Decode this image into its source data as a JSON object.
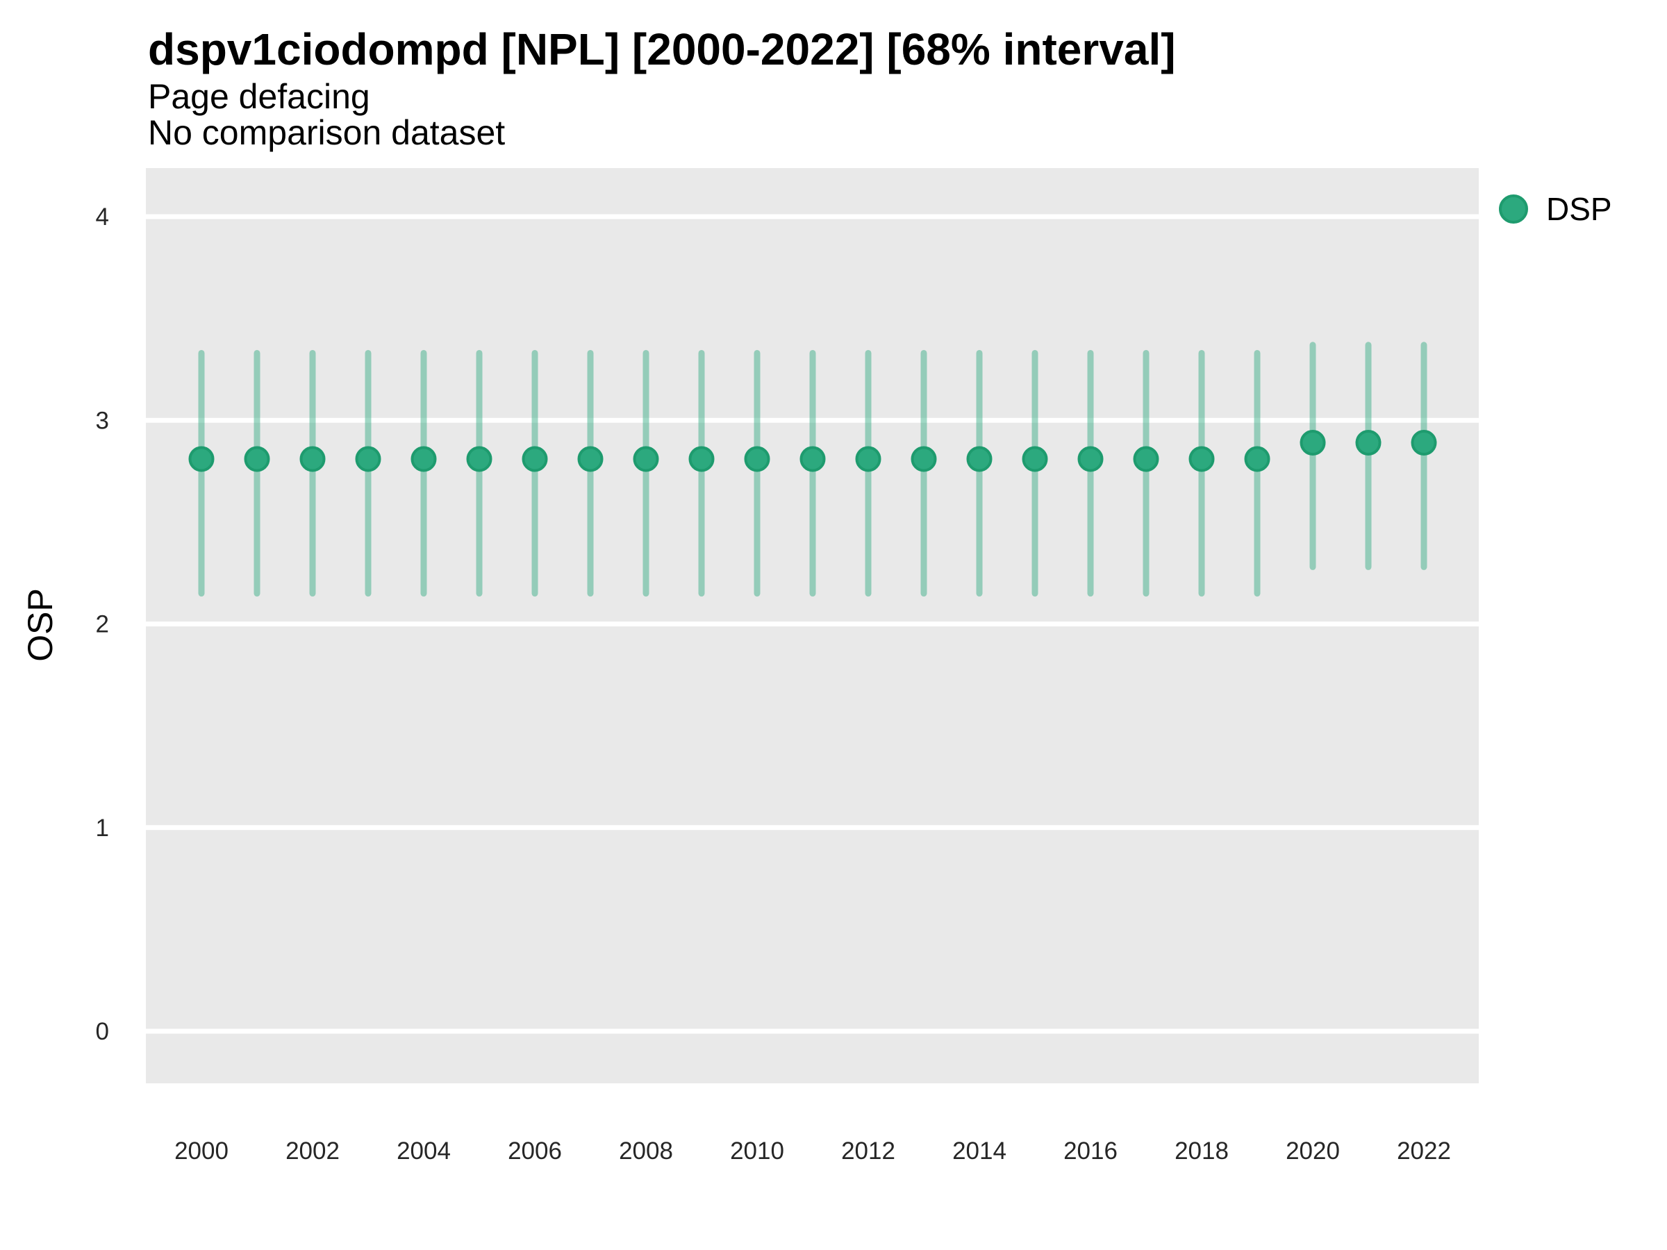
{
  "header": {
    "title": "dspv1ciodompd [NPL] [2000-2022] [68% interval]",
    "subtitle": "Page defacing",
    "note": "No comparison dataset"
  },
  "legend": {
    "label": "DSP"
  },
  "axes": {
    "y_title": "OSP"
  },
  "colors": {
    "point_fill": "#2CA97E",
    "point_stroke": "#1E9B6E",
    "interval_bar": "rgba(44,169,126,0.45)",
    "panel_background": "#E9E9E9",
    "grid_line": "#FFFFFF",
    "tick_text": "#262626"
  },
  "chart_data": {
    "type": "scatter",
    "subtype": "pointrange",
    "title": "dspv1ciodompd [NPL] [2000-2022] [68% interval]",
    "subtitle": "Page defacing",
    "note": "No comparison dataset",
    "xlabel": "",
    "ylabel": "OSP",
    "interval": "68%",
    "ylim": [
      -0.26,
      4.24
    ],
    "y_ticks": [
      4,
      3,
      2,
      1,
      0
    ],
    "y_tick_labels": [
      "4",
      "3",
      "2",
      "1",
      "0"
    ],
    "x_tick_years": [
      2000,
      2002,
      2004,
      2006,
      2008,
      2010,
      2012,
      2014,
      2016,
      2018,
      2020,
      2022
    ],
    "x_tick_labels": [
      "2000",
      "2002",
      "2004",
      "2006",
      "2008",
      "2010",
      "2012",
      "2014",
      "2016",
      "2018",
      "2020",
      "2022"
    ],
    "grid": "major-only",
    "legend_position": "right",
    "series": [
      {
        "name": "DSP",
        "x": [
          2000,
          2001,
          2002,
          2003,
          2004,
          2005,
          2006,
          2007,
          2008,
          2009,
          2010,
          2011,
          2012,
          2013,
          2014,
          2015,
          2016,
          2017,
          2018,
          2019,
          2020,
          2021,
          2022
        ],
        "y": [
          2.81,
          2.81,
          2.81,
          2.81,
          2.81,
          2.81,
          2.81,
          2.81,
          2.81,
          2.81,
          2.81,
          2.81,
          2.81,
          2.81,
          2.81,
          2.81,
          2.81,
          2.81,
          2.81,
          2.81,
          2.89,
          2.89,
          2.89
        ],
        "lower": [
          2.15,
          2.15,
          2.15,
          2.15,
          2.15,
          2.15,
          2.15,
          2.15,
          2.15,
          2.15,
          2.15,
          2.15,
          2.15,
          2.15,
          2.15,
          2.15,
          2.15,
          2.15,
          2.15,
          2.15,
          2.28,
          2.28,
          2.28
        ],
        "upper": [
          3.33,
          3.33,
          3.33,
          3.33,
          3.33,
          3.33,
          3.33,
          3.33,
          3.33,
          3.33,
          3.33,
          3.33,
          3.33,
          3.33,
          3.33,
          3.33,
          3.33,
          3.33,
          3.33,
          3.33,
          3.37,
          3.37,
          3.37
        ]
      }
    ]
  }
}
